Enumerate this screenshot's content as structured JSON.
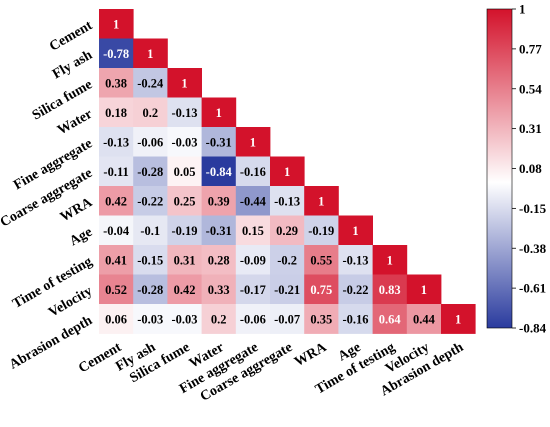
{
  "chart_data": {
    "type": "heatmap",
    "variables": [
      "Cement",
      "Fly ash",
      "Silica fume",
      "Water",
      "Fine aggregate",
      "Coarse aggregate",
      "WRA",
      "Age",
      "Time of testing",
      "Velocity",
      "Abrasion depth"
    ],
    "matrix": [
      [
        1
      ],
      [
        -0.78,
        1
      ],
      [
        0.38,
        -0.24,
        1
      ],
      [
        0.18,
        0.2,
        -0.13,
        1
      ],
      [
        -0.13,
        -0.06,
        -0.03,
        -0.31,
        1
      ],
      [
        -0.11,
        -0.28,
        0.05,
        -0.84,
        -0.16,
        1
      ],
      [
        0.42,
        -0.22,
        0.25,
        0.39,
        -0.44,
        -0.13,
        1
      ],
      [
        -0.04,
        -0.1,
        -0.19,
        -0.31,
        0.15,
        0.29,
        -0.19,
        1
      ],
      [
        0.41,
        -0.15,
        0.31,
        0.28,
        -0.09,
        -0.2,
        0.55,
        -0.13,
        1
      ],
      [
        0.52,
        -0.28,
        0.42,
        0.33,
        -0.17,
        -0.21,
        0.75,
        -0.22,
        0.83,
        1
      ],
      [
        0.06,
        -0.03,
        -0.03,
        0.2,
        -0.06,
        -0.07,
        0.35,
        -0.16,
        0.64,
        0.44,
        1
      ]
    ],
    "value_labels": [
      [
        "1"
      ],
      [
        "-0.78",
        "1"
      ],
      [
        "0.38",
        "-0.24",
        "1"
      ],
      [
        "0.18",
        "0.2",
        "-0.13",
        "1"
      ],
      [
        "-0.13",
        "-0.06",
        "-0.03",
        "-0.31",
        "1"
      ],
      [
        "-0.11",
        "-0.28",
        "0.05",
        "-0.84",
        "-0.16",
        "1"
      ],
      [
        "0.42",
        "-0.22",
        "0.25",
        "0.39",
        "-0.44",
        "-0.13",
        "1"
      ],
      [
        "-0.04",
        "-0.1",
        "-0.19",
        "-0.31",
        "0.15",
        "0.29",
        "-0.19",
        "1"
      ],
      [
        "0.41",
        "-0.15",
        "0.31",
        "0.28",
        "-0.09",
        "-0.2",
        "0.55",
        "-0.13",
        "1"
      ],
      [
        "0.52",
        "-0.28",
        "0.42",
        "0.33",
        "-0.17",
        "-0.21",
        "0.75",
        "-0.22",
        "0.83",
        "1"
      ],
      [
        "0.06",
        "-0.03",
        "-0.03",
        "0.2",
        "-0.06",
        "-0.07",
        "0.35",
        "-0.16",
        "0.64",
        "0.44",
        "1"
      ]
    ],
    "colorbar": {
      "range": [
        -0.84,
        1
      ],
      "ticks": [
        "1",
        "0.77",
        "0.54",
        "0.31",
        "0.08",
        "-0.15",
        "-0.38",
        "-0.61",
        "-0.84"
      ],
      "colors": {
        "low": "#2a3b9e",
        "mid": "#ffffff",
        "high": "#d3122b"
      }
    },
    "title": "",
    "xlabel": "",
    "ylabel": ""
  }
}
